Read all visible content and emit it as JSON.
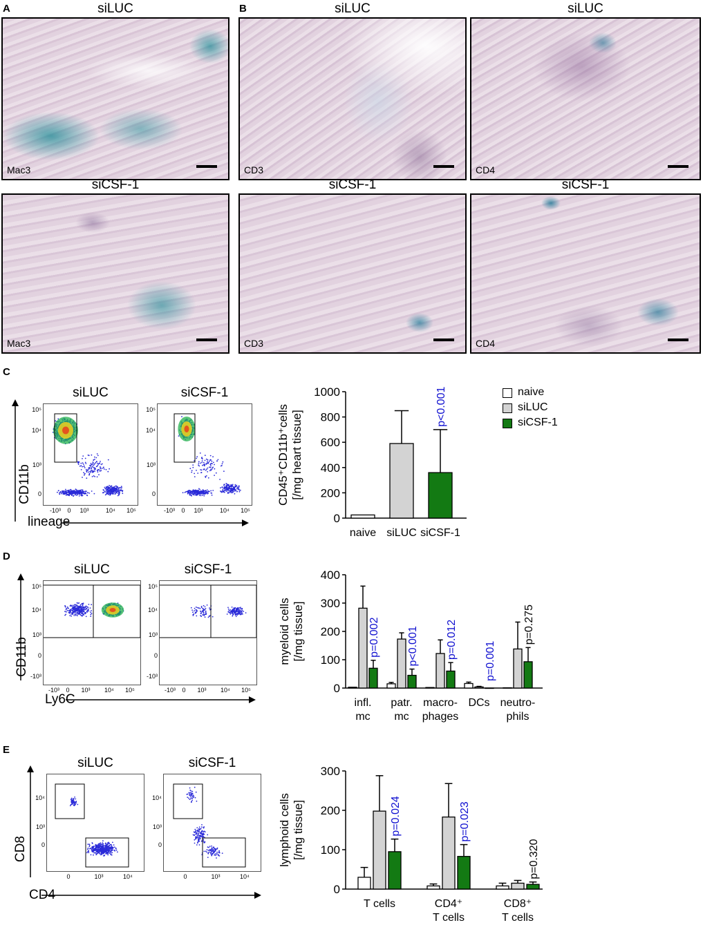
{
  "panels": {
    "A": {
      "label": "A",
      "title_top": "siLUC",
      "title_bottom": "siCSF-1",
      "stain_top": "Mac3",
      "stain_bottom": "Mac3"
    },
    "B": {
      "label": "B",
      "titles_top": [
        "siLUC",
        "siLUC"
      ],
      "titles_bottom": [
        "siCSF-1",
        "siCSF-1"
      ],
      "stains_top": [
        "CD3",
        "CD4"
      ],
      "stains_bottom": [
        "CD3",
        "CD4"
      ]
    },
    "C": {
      "label": "C",
      "flow_titles": [
        "siLUC",
        "siCSF-1"
      ],
      "flow_ylabel": "CD11b",
      "flow_xlabel": "lineage",
      "flow_yticks": [
        "10⁵",
        "10⁴",
        "10³",
        "0"
      ],
      "flow_xticks": [
        "-10³",
        "0",
        "10³",
        "10⁴",
        "10⁵"
      ]
    },
    "D": {
      "label": "D",
      "flow_titles": [
        "siLUC",
        "siCSF-1"
      ],
      "flow_ylabel": "CD11b",
      "flow_xlabel": "Ly6C",
      "flow_yticks": [
        "10⁵",
        "10⁴",
        "10³",
        "0",
        "-10³"
      ],
      "flow_xticks": [
        "-10³",
        "0",
        "10³",
        "10⁴",
        "10⁵"
      ]
    },
    "E": {
      "label": "E",
      "flow_titles": [
        "siLUC",
        "siCSF-1"
      ],
      "flow_ylabel": "CD8",
      "flow_xlabel": "CD4",
      "flow_yticks": [
        "10⁴",
        "10³",
        "0"
      ],
      "flow_xticks": [
        "0",
        "10³",
        "10⁴"
      ]
    }
  },
  "legend": {
    "entries": [
      {
        "label": "naive",
        "color": "#ffffff"
      },
      {
        "label": "siLUC",
        "color": "#d3d3d3"
      },
      {
        "label": "siCSF-1",
        "color": "#137a13"
      }
    ]
  },
  "colors": {
    "naive": "#ffffff",
    "siLUC": "#d3d3d3",
    "siCSF1": "#137a13",
    "pvalue_sig": "#1010d0",
    "pvalue_ns": "#000000"
  },
  "chart_data": [
    {
      "type": "bar",
      "ylabel_line1": "CD45⁺CD11b⁺cells",
      "ylabel_line2": "[/mg heart tissue]",
      "ylim": [
        0,
        1000
      ],
      "yticks": [
        0,
        200,
        400,
        600,
        800,
        1000
      ],
      "groups": [
        {
          "label": [
            "naive"
          ],
          "bars": [
            {
              "series": "naive",
              "value": 25,
              "err": 0
            }
          ]
        },
        {
          "label": [
            "siLUC"
          ],
          "bars": [
            {
              "series": "siLUC",
              "value": 590,
              "err": 260
            }
          ]
        },
        {
          "label": [
            "siCSF-1"
          ],
          "bars": [
            {
              "series": "siCSF1",
              "value": 360,
              "err": 340,
              "p": "p<0.001",
              "sig": true
            }
          ]
        }
      ]
    },
    {
      "type": "bar",
      "ylabel_line1": "myeloid cells",
      "ylabel_line2": "[/mg tissue]",
      "ylim": [
        0,
        400
      ],
      "yticks": [
        0,
        100,
        200,
        300,
        400
      ],
      "groups": [
        {
          "label": [
            "infl.",
            "mc"
          ],
          "bars": [
            {
              "series": "naive",
              "value": 3,
              "err": 0
            },
            {
              "series": "siLUC",
              "value": 282,
              "err": 78
            },
            {
              "series": "siCSF1",
              "value": 70,
              "err": 28,
              "p": "p=0.002",
              "sig": true
            }
          ]
        },
        {
          "label": [
            "patr.",
            "mc"
          ],
          "bars": [
            {
              "series": "naive",
              "value": 15,
              "err": 5
            },
            {
              "series": "siLUC",
              "value": 173,
              "err": 22
            },
            {
              "series": "siCSF1",
              "value": 45,
              "err": 22,
              "p": "p<0.001",
              "sig": true
            }
          ]
        },
        {
          "label": [
            "macro-",
            "phages"
          ],
          "bars": [
            {
              "series": "naive",
              "value": 2,
              "err": 0
            },
            {
              "series": "siLUC",
              "value": 122,
              "err": 48
            },
            {
              "series": "siCSF1",
              "value": 60,
              "err": 30,
              "p": "p=0.012",
              "sig": true
            }
          ]
        },
        {
          "label": [
            "DCs"
          ],
          "bars": [
            {
              "series": "naive",
              "value": 16,
              "err": 5
            },
            {
              "series": "siLUC",
              "value": 4,
              "err": 2
            },
            {
              "series": "siCSF1",
              "value": 0,
              "err": 0,
              "p": "p=0.001",
              "sig": true
            }
          ]
        },
        {
          "label": [
            "neutro-",
            "phils"
          ],
          "bars": [
            {
              "series": "naive",
              "value": 1,
              "err": 0
            },
            {
              "series": "siLUC",
              "value": 138,
              "err": 95
            },
            {
              "series": "siCSF1",
              "value": 93,
              "err": 50,
              "p": "p=0.275",
              "sig": false
            }
          ]
        }
      ]
    },
    {
      "type": "bar",
      "ylabel_line1": "lymphoid cells",
      "ylabel_line2": "[/mg tissue]",
      "ylim": [
        0,
        300
      ],
      "yticks": [
        0,
        100,
        200,
        300
      ],
      "groups": [
        {
          "label": [
            "T cells"
          ],
          "bars": [
            {
              "series": "naive",
              "value": 30,
              "err": 25
            },
            {
              "series": "siLUC",
              "value": 198,
              "err": 90
            },
            {
              "series": "siCSF1",
              "value": 95,
              "err": 32,
              "p": "p=0.024",
              "sig": true
            }
          ]
        },
        {
          "label": [
            "CD4⁺",
            "T cells"
          ],
          "bars": [
            {
              "series": "naive",
              "value": 8,
              "err": 5
            },
            {
              "series": "siLUC",
              "value": 183,
              "err": 85
            },
            {
              "series": "siCSF1",
              "value": 83,
              "err": 30,
              "p": "p=0.023",
              "sig": true
            }
          ]
        },
        {
          "label": [
            "CD8⁺",
            "T cells"
          ],
          "bars": [
            {
              "series": "naive",
              "value": 8,
              "err": 7
            },
            {
              "series": "siLUC",
              "value": 15,
              "err": 7
            },
            {
              "series": "siCSF1",
              "value": 12,
              "err": 6,
              "p": "p=0.320",
              "sig": false
            }
          ]
        }
      ]
    }
  ]
}
